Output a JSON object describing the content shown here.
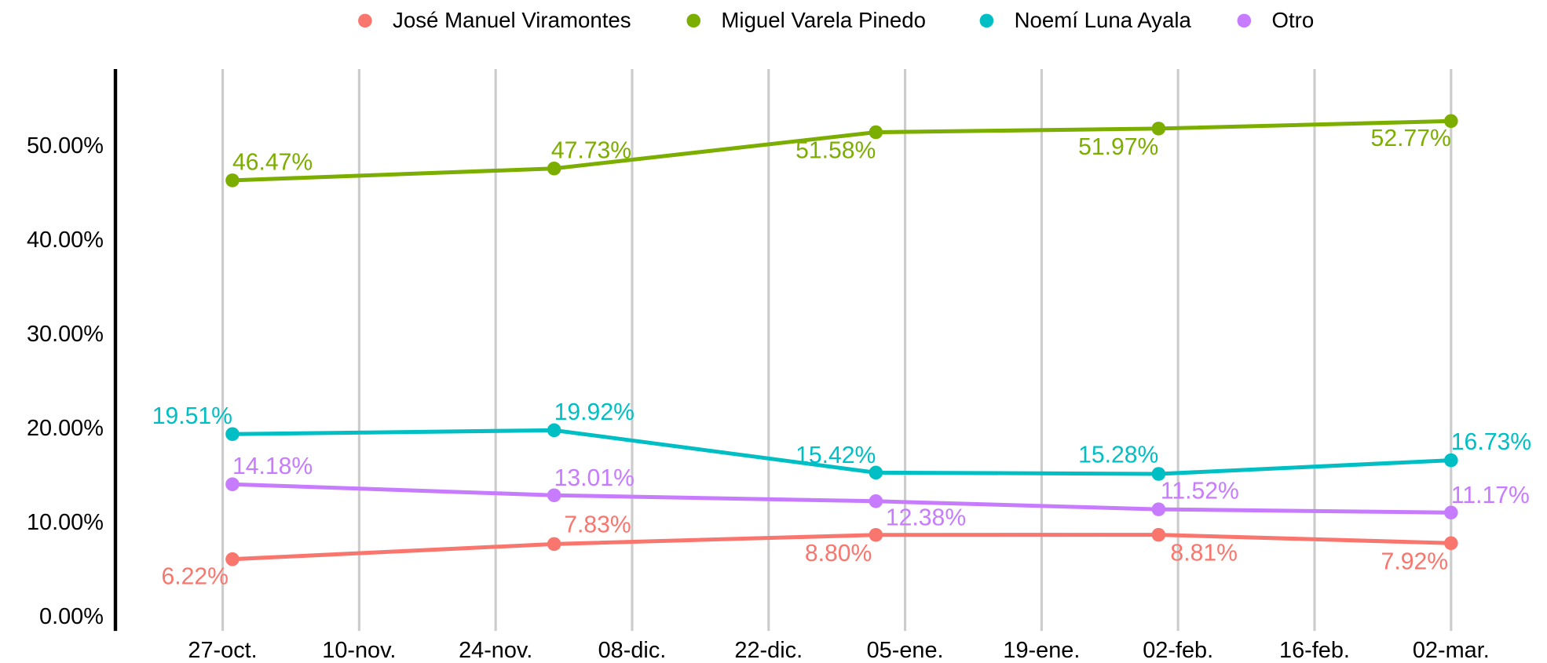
{
  "chart_data": {
    "type": "line",
    "x": [
      1,
      34,
      67,
      96,
      126
    ],
    "xlim": [
      -11,
      132
    ],
    "xticks": [
      {
        "value": 0,
        "label": "27-oct."
      },
      {
        "value": 14,
        "label": "10-nov."
      },
      {
        "value": 28,
        "label": "24-nov."
      },
      {
        "value": 42,
        "label": "08-dic."
      },
      {
        "value": 56,
        "label": "22-dic."
      },
      {
        "value": 70,
        "label": "05-ene."
      },
      {
        "value": 84,
        "label": "19-ene."
      },
      {
        "value": 98,
        "label": "02-feb."
      },
      {
        "value": 112,
        "label": "16-feb."
      },
      {
        "value": 126,
        "label": "02-mar."
      }
    ],
    "ylim": [
      -1.4,
      58.3
    ],
    "yticks": [
      {
        "value": 0,
        "label": "0.00%"
      },
      {
        "value": 10,
        "label": "10.00%"
      },
      {
        "value": 20,
        "label": "20.00%"
      },
      {
        "value": 30,
        "label": "30.00%"
      },
      {
        "value": 40,
        "label": "40.00%"
      },
      {
        "value": 50,
        "label": "50.00%"
      }
    ],
    "grid": "x",
    "legend": "top",
    "series": [
      {
        "name": "José Manuel Viramontes",
        "color": "#F8766D",
        "values": [
          6.22,
          7.83,
          8.8,
          8.81,
          7.92
        ],
        "value_labels": [
          "6.22%",
          "7.83%",
          "8.80%",
          "8.81%",
          "7.92%"
        ]
      },
      {
        "name": "Miguel Varela Pinedo",
        "color": "#7CAE00",
        "values": [
          46.47,
          47.73,
          51.58,
          51.97,
          52.77
        ],
        "value_labels": [
          "46.47%",
          "47.73%",
          "51.58%",
          "51.97%",
          "52.77%"
        ]
      },
      {
        "name": "Noemí Luna Ayala",
        "color": "#00BFC4",
        "values": [
          19.51,
          19.92,
          15.42,
          15.28,
          16.73
        ],
        "value_labels": [
          "19.51%",
          "19.92%",
          "15.42%",
          "15.28%",
          "16.73%"
        ]
      },
      {
        "name": "Otro",
        "color": "#C77CFF",
        "values": [
          14.18,
          13.01,
          12.38,
          11.52,
          11.17
        ],
        "value_labels": [
          "14.18%",
          "13.01%",
          "12.38%",
          "11.52%",
          "11.17%"
        ]
      }
    ]
  }
}
